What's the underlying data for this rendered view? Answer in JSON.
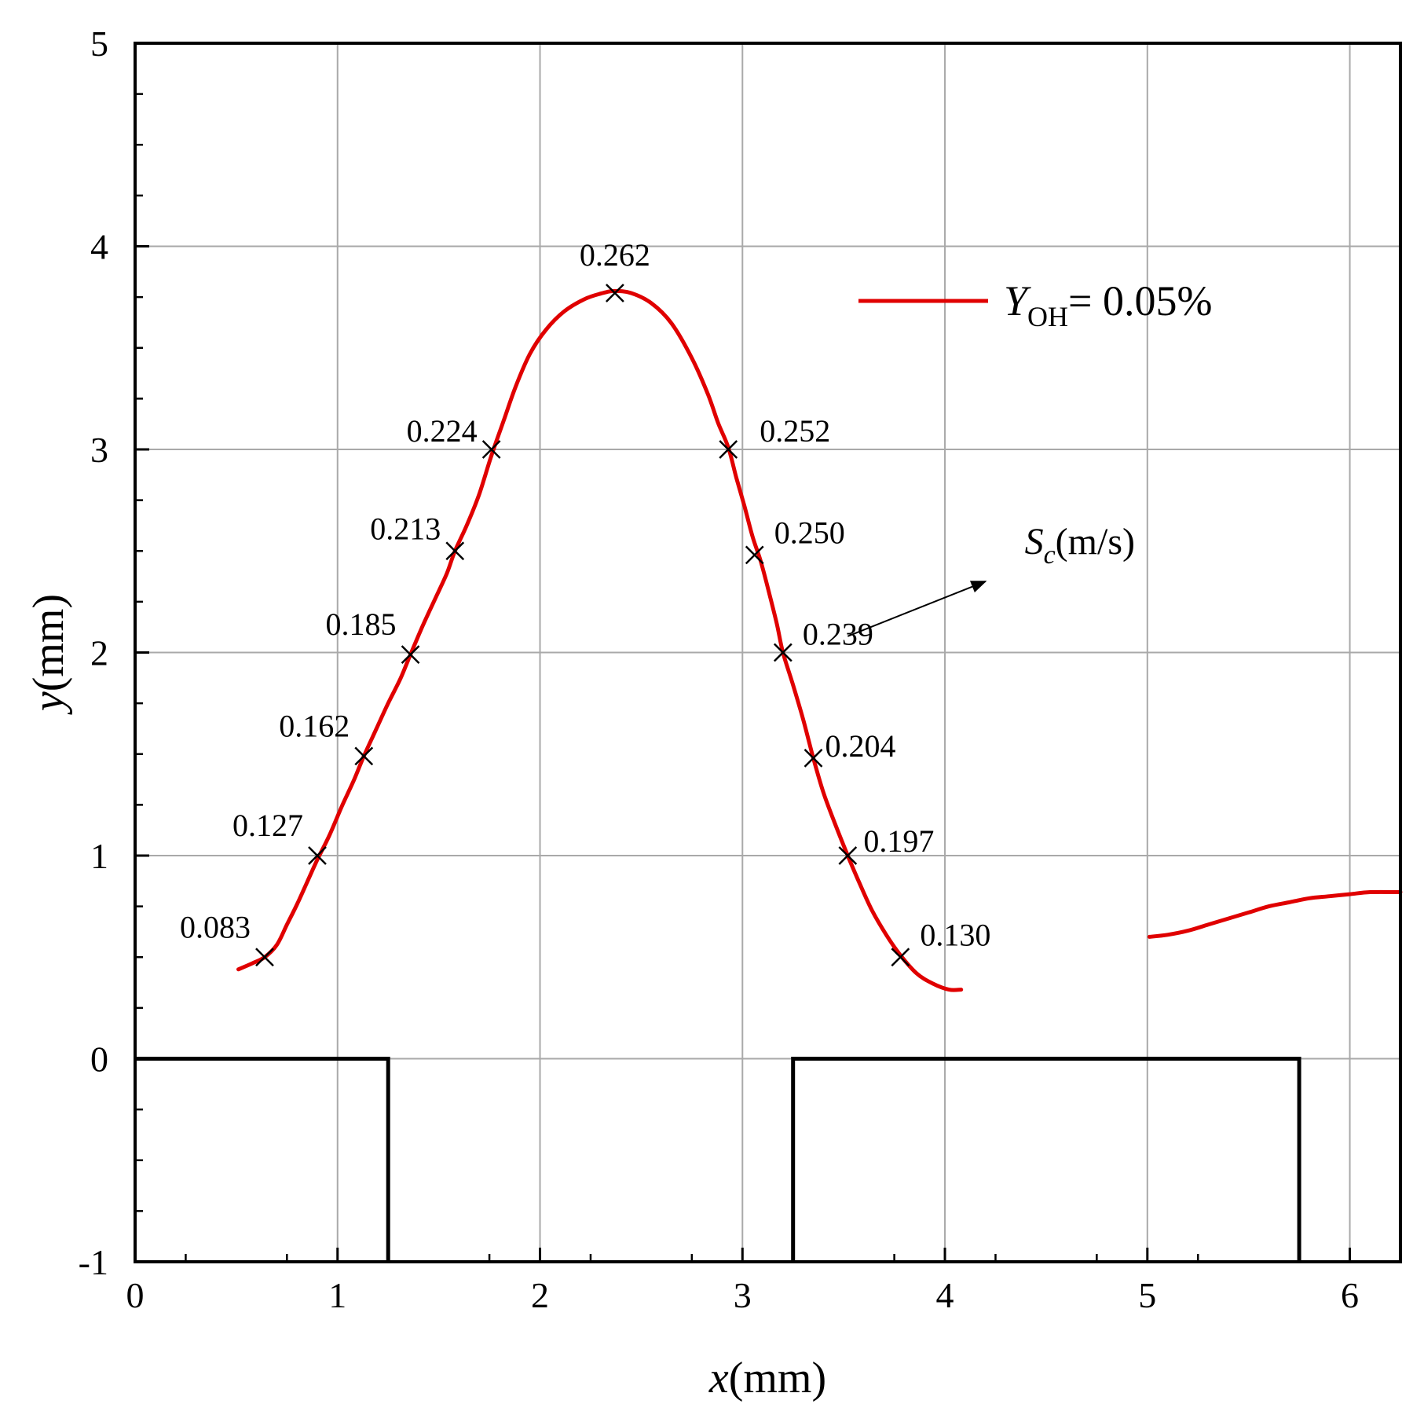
{
  "chart_data": {
    "type": "line",
    "title": "",
    "xlabel": {
      "var": "x",
      "unit": "(mm)"
    },
    "ylabel": {
      "var": "y",
      "unit": "(mm)"
    },
    "xlim": [
      0,
      6.25
    ],
    "ylim": [
      -1,
      5
    ],
    "x_ticks": [
      "0",
      "1",
      "2",
      "3",
      "4",
      "5",
      "6"
    ],
    "y_ticks": [
      "-1",
      "0",
      "1",
      "2",
      "3",
      "4",
      "5"
    ],
    "grid": true,
    "series": [
      {
        "name": "Y_OH = 0.05%",
        "color": "#e00000",
        "segments": [
          [
            [
              0.51,
              0.44
            ],
            [
              0.58,
              0.47
            ],
            [
              0.64,
              0.5
            ],
            [
              0.7,
              0.56
            ],
            [
              0.75,
              0.66
            ],
            [
              0.8,
              0.76
            ],
            [
              0.85,
              0.87
            ],
            [
              0.9,
              0.98
            ],
            [
              0.96,
              1.1
            ],
            [
              1.02,
              1.24
            ],
            [
              1.08,
              1.37
            ],
            [
              1.13,
              1.49
            ],
            [
              1.19,
              1.62
            ],
            [
              1.25,
              1.75
            ],
            [
              1.31,
              1.87
            ],
            [
              1.36,
              1.99
            ],
            [
              1.42,
              2.13
            ],
            [
              1.48,
              2.26
            ],
            [
              1.54,
              2.39
            ],
            [
              1.58,
              2.5
            ],
            [
              1.64,
              2.63
            ],
            [
              1.7,
              2.78
            ],
            [
              1.76,
              2.97
            ],
            [
              1.82,
              3.14
            ],
            [
              1.88,
              3.31
            ],
            [
              1.95,
              3.47
            ],
            [
              2.03,
              3.59
            ],
            [
              2.12,
              3.68
            ],
            [
              2.22,
              3.74
            ],
            [
              2.31,
              3.77
            ],
            [
              2.37,
              3.78
            ],
            [
              2.45,
              3.77
            ],
            [
              2.55,
              3.72
            ],
            [
              2.65,
              3.62
            ],
            [
              2.75,
              3.45
            ],
            [
              2.83,
              3.27
            ],
            [
              2.88,
              3.13
            ],
            [
              2.93,
              3.01
            ],
            [
              2.97,
              2.86
            ],
            [
              3.01,
              2.72
            ],
            [
              3.05,
              2.57
            ],
            [
              3.09,
              2.45
            ],
            [
              3.13,
              2.3
            ],
            [
              3.17,
              2.14
            ],
            [
              3.2,
              2.0
            ],
            [
              3.25,
              1.84
            ],
            [
              3.3,
              1.67
            ],
            [
              3.35,
              1.48
            ],
            [
              3.4,
              1.31
            ],
            [
              3.46,
              1.15
            ],
            [
              3.52,
              1.0
            ],
            [
              3.58,
              0.86
            ],
            [
              3.64,
              0.73
            ],
            [
              3.71,
              0.61
            ],
            [
              3.78,
              0.51
            ],
            [
              3.86,
              0.42
            ],
            [
              3.94,
              0.37
            ],
            [
              4.02,
              0.34
            ],
            [
              4.08,
              0.34
            ]
          ],
          [
            [
              5.01,
              0.6
            ],
            [
              5.1,
              0.61
            ],
            [
              5.2,
              0.63
            ],
            [
              5.3,
              0.66
            ],
            [
              5.4,
              0.69
            ],
            [
              5.5,
              0.72
            ],
            [
              5.6,
              0.75
            ],
            [
              5.7,
              0.77
            ],
            [
              5.8,
              0.79
            ],
            [
              5.9,
              0.8
            ],
            [
              6.0,
              0.81
            ],
            [
              6.1,
              0.82
            ],
            [
              6.25,
              0.82
            ]
          ]
        ]
      }
    ],
    "markers": [
      {
        "x": 0.64,
        "y": 0.5,
        "label": "0.083",
        "anchor": "end",
        "dx": -18,
        "dy": -25
      },
      {
        "x": 0.9,
        "y": 1.0,
        "label": "0.127",
        "anchor": "end",
        "dx": -18,
        "dy": -25
      },
      {
        "x": 1.13,
        "y": 1.49,
        "label": "0.162",
        "anchor": "end",
        "dx": -18,
        "dy": -25
      },
      {
        "x": 1.36,
        "y": 1.99,
        "label": "0.185",
        "anchor": "end",
        "dx": -18,
        "dy": -25
      },
      {
        "x": 1.58,
        "y": 2.5,
        "label": "0.213",
        "anchor": "end",
        "dx": -18,
        "dy": -15
      },
      {
        "x": 1.76,
        "y": 3.0,
        "label": "0.224",
        "anchor": "end",
        "dx": -18,
        "dy": -10
      },
      {
        "x": 2.37,
        "y": 3.77,
        "label": "0.262",
        "anchor": "middle",
        "dx": 0,
        "dy": -35
      },
      {
        "x": 2.93,
        "y": 3.0,
        "label": "0.252",
        "anchor": "start",
        "dx": 40,
        "dy": -10
      },
      {
        "x": 3.06,
        "y": 2.48,
        "label": "0.250",
        "anchor": "start",
        "dx": 25,
        "dy": -15
      },
      {
        "x": 3.2,
        "y": 2.0,
        "label": "0.239",
        "anchor": "start",
        "dx": 25,
        "dy": -10
      },
      {
        "x": 3.35,
        "y": 1.48,
        "label": "0.204",
        "anchor": "start",
        "dx": 15,
        "dy": -2
      },
      {
        "x": 3.52,
        "y": 1.0,
        "label": "0.197",
        "anchor": "start",
        "dx": 20,
        "dy": -5
      },
      {
        "x": 3.78,
        "y": 0.5,
        "label": "0.130",
        "anchor": "start",
        "dx": 25,
        "dy": -15
      }
    ],
    "geometry_outline": {
      "color": "#000000",
      "segments": [
        [
          [
            0,
            0
          ],
          [
            1.25,
            0
          ],
          [
            1.25,
            -1
          ]
        ],
        [
          [
            3.25,
            -1
          ],
          [
            3.25,
            0
          ],
          [
            5.75,
            0
          ],
          [
            5.75,
            -1
          ]
        ]
      ]
    },
    "legend": {
      "position": "top-right",
      "label_main": "Y",
      "label_sub": "OH",
      "label_rest": "= 0.05%"
    },
    "annotation": {
      "label_main": "S",
      "label_sub": "c",
      "label_rest": "(m/s)",
      "arrow_from": [
        3.52,
        2.08
      ],
      "arrow_to": [
        4.2,
        2.35
      ]
    }
  }
}
